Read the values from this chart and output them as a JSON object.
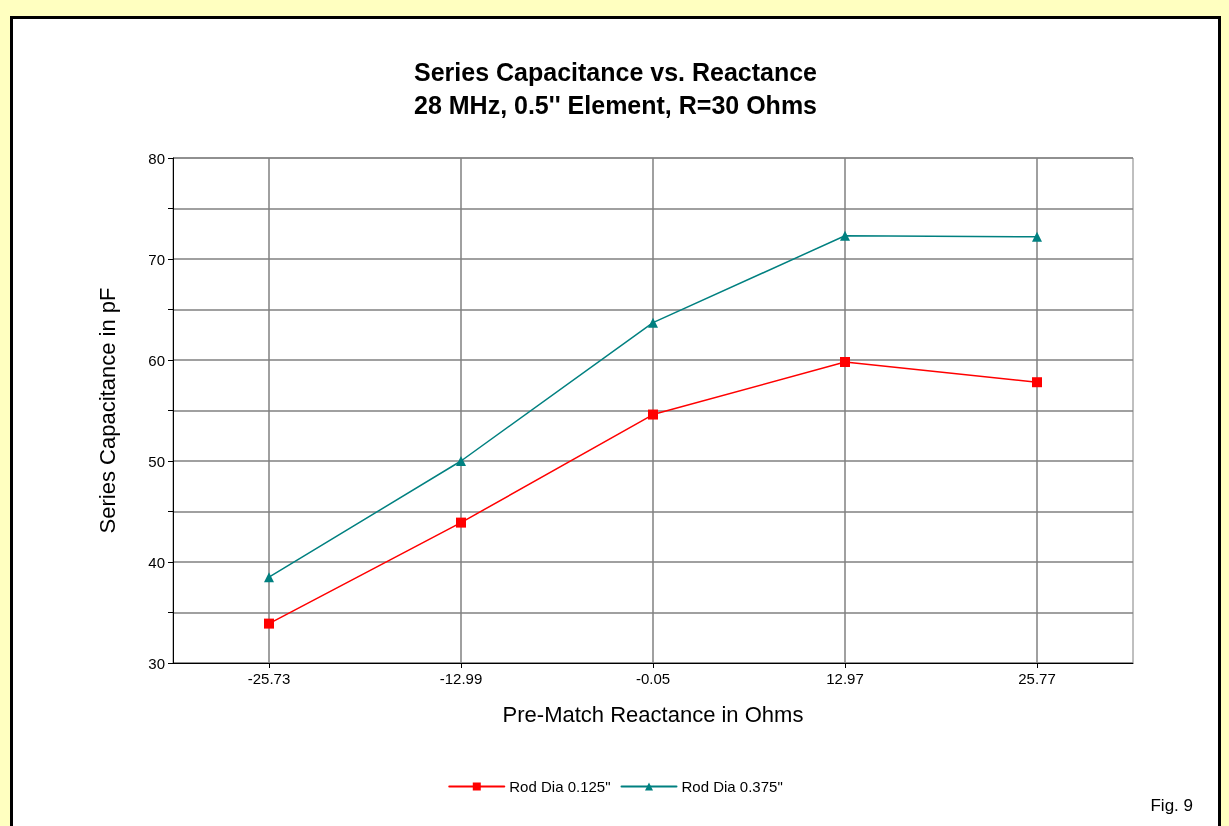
{
  "chart_data": {
    "type": "line",
    "title": "Series Capacitance vs. Reactance",
    "subtitle": "28 MHz, 0.5'' Element, R=30 Ohms",
    "xlabel": "Pre-Match Reactance in Ohms",
    "ylabel": "Series Capacitance in pF",
    "categories": [
      "-25.73",
      "-12.99",
      "-0.05",
      "12.97",
      "25.77"
    ],
    "series": [
      {
        "name": "Rod Dia 0.125\"",
        "color": "#ff0000",
        "marker": "square",
        "values": [
          33.9,
          43.9,
          54.6,
          59.8,
          57.8
        ]
      },
      {
        "name": "Rod Dia 0.375\"",
        "color": "#008080",
        "marker": "triangle",
        "values": [
          38.5,
          50.0,
          63.7,
          72.3,
          72.2
        ]
      }
    ],
    "ylim": [
      30,
      80
    ],
    "yticks": [
      30,
      {
        "value": 35,
        "label": null
      },
      40,
      {
        "value": 45,
        "label": null
      },
      50,
      {
        "value": 55,
        "label": null
      },
      60,
      {
        "value": 65,
        "label": null
      },
      70,
      {
        "value": 75,
        "label": null
      },
      80
    ],
    "grid": true,
    "legend": "bottom",
    "line_style": "solid",
    "annotations": [
      "Fig. 9"
    ]
  }
}
